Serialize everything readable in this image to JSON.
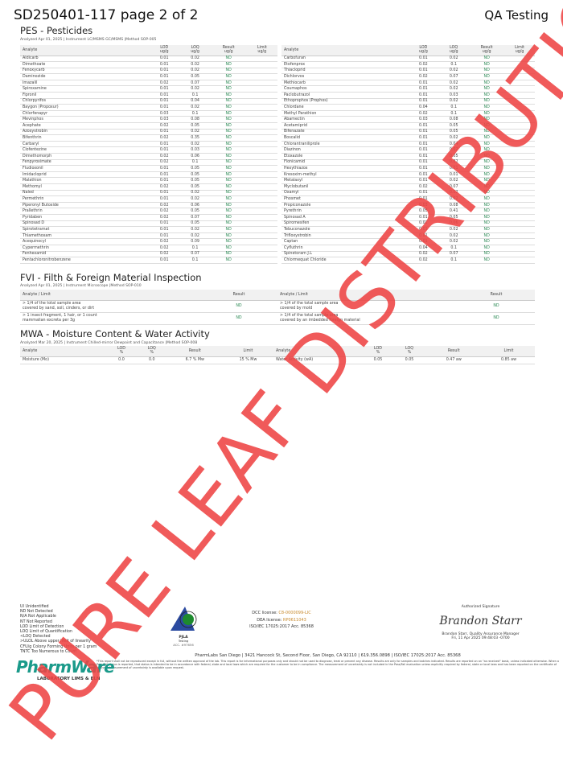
{
  "header": {
    "title": "SD250401-117 page 2 of 2",
    "brand": "QA Testing"
  },
  "pes": {
    "heading": "PES - Pesticides",
    "meta": "Analyzed Apr 01, 2025  |  Instrument LC/MSMS GC/MSMS  |Method SOP-005",
    "columns": [
      "Analyte",
      "LOD\nug/g",
      "LOQ\nug/g",
      "Result\nug/g",
      "Limit\nug/g"
    ],
    "left": [
      [
        "Aldicarb",
        "0.01",
        "0.02",
        "ND",
        ""
      ],
      [
        "Dimethoate",
        "0.01",
        "0.02",
        "ND",
        ""
      ],
      [
        "Fenoxycarb",
        "0.01",
        "0.02",
        "ND",
        ""
      ],
      [
        "Daminozide",
        "0.01",
        "0.05",
        "ND",
        ""
      ],
      [
        "Imazalil",
        "0.02",
        "0.07",
        "ND",
        ""
      ],
      [
        "Spiroxamine",
        "0.01",
        "0.02",
        "ND",
        ""
      ],
      [
        "Fipronil",
        "0.01",
        "0.1",
        "ND",
        ""
      ],
      [
        "Chlorpyrifos",
        "0.01",
        "0.04",
        "ND",
        ""
      ],
      [
        "Baygon (Propoxur)",
        "0.01",
        "0.02",
        "ND",
        ""
      ],
      [
        "Chlorfenapyr",
        "0.03",
        "0.1",
        "ND",
        ""
      ],
      [
        "Mevinphos",
        "0.03",
        "0.08",
        "ND",
        ""
      ],
      [
        "Acephate",
        "0.02",
        "0.05",
        "ND",
        ""
      ],
      [
        "Azoxystrobin",
        "0.01",
        "0.02",
        "ND",
        ""
      ],
      [
        "Bifenthrin",
        "0.02",
        "0.35",
        "ND",
        ""
      ],
      [
        "Carbaryl",
        "0.01",
        "0.02",
        "ND",
        ""
      ],
      [
        "Clofentezine",
        "0.01",
        "0.03",
        "ND",
        ""
      ],
      [
        "Dimethomorph",
        "0.02",
        "0.06",
        "ND",
        ""
      ],
      [
        "Fenpyroximate",
        "0.02",
        "0.1",
        "ND",
        ""
      ],
      [
        "Fludioxonil",
        "0.01",
        "0.05",
        "ND",
        ""
      ],
      [
        "Imidacloprid",
        "0.01",
        "0.05",
        "ND",
        ""
      ],
      [
        "Malathion",
        "0.01",
        "0.05",
        "ND",
        ""
      ],
      [
        "Methomyl",
        "0.02",
        "0.05",
        "ND",
        ""
      ],
      [
        "Naled",
        "0.01",
        "0.02",
        "ND",
        ""
      ],
      [
        "Permethrin",
        "0.01",
        "0.02",
        "ND",
        ""
      ],
      [
        "Piperonyl Butoxide",
        "0.02",
        "0.06",
        "ND",
        ""
      ],
      [
        "Prallethrin",
        "0.02",
        "0.05",
        "ND",
        ""
      ],
      [
        "Pyridaben",
        "0.02",
        "0.07",
        "ND",
        ""
      ],
      [
        "Spinosad D",
        "0.01",
        "0.05",
        "ND",
        ""
      ],
      [
        "Spirotetramat",
        "0.01",
        "0.02",
        "ND",
        ""
      ],
      [
        "Thiamethoxam",
        "0.01",
        "0.02",
        "ND",
        ""
      ],
      [
        "Acequinocyl",
        "0.02",
        "0.09",
        "ND",
        ""
      ],
      [
        "Cypermethrin",
        "0.02",
        "0.1",
        "ND",
        ""
      ],
      [
        "Fenhexamid",
        "0.02",
        "0.07",
        "ND",
        ""
      ],
      [
        "Pentachloronitrobenzene",
        "0.01",
        "0.1",
        "ND",
        ""
      ]
    ],
    "right": [
      [
        "Carbofuran",
        "0.01",
        "0.02",
        "ND",
        ""
      ],
      [
        "Etofenprox",
        "0.02",
        "0.1",
        "ND",
        ""
      ],
      [
        "Thiacloprid",
        "0.01",
        "0.02",
        "ND",
        ""
      ],
      [
        "Dichlorvos",
        "0.02",
        "0.07",
        "ND",
        ""
      ],
      [
        "Methiocarb",
        "0.01",
        "0.02",
        "ND",
        ""
      ],
      [
        "Coumaphos",
        "0.01",
        "0.02",
        "ND",
        ""
      ],
      [
        "Paclobutrazol",
        "0.01",
        "0.03",
        "ND",
        ""
      ],
      [
        "Ethoprophos (Prophos)",
        "0.01",
        "0.02",
        "ND",
        ""
      ],
      [
        "Chlordane",
        "0.04",
        "0.1",
        "ND",
        ""
      ],
      [
        "Methyl Parathion",
        "0.02",
        "0.1",
        "ND",
        ""
      ],
      [
        "Abamectin",
        "0.03",
        "0.08",
        "ND",
        ""
      ],
      [
        "Acetamiprid",
        "0.01",
        "0.05",
        "ND",
        ""
      ],
      [
        "Bifenazate",
        "0.01",
        "0.05",
        "ND",
        ""
      ],
      [
        "Boscalid",
        "0.01",
        "0.02",
        "ND",
        ""
      ],
      [
        "Chlorantraniliprole",
        "0.01",
        "0.04",
        "ND",
        ""
      ],
      [
        "Diazinon",
        "0.01",
        "0.02",
        "ND",
        ""
      ],
      [
        "Etoxazole",
        "0.01",
        "0.05",
        "ND",
        ""
      ],
      [
        "Flonicamid",
        "0.01",
        "0.02",
        "ND",
        ""
      ],
      [
        "Hexythiazox",
        "0.01",
        "0.01",
        "ND",
        ""
      ],
      [
        "Kresoxim-methyl",
        "0.01",
        "0.01",
        "ND",
        ""
      ],
      [
        "Metalaxyl",
        "0.01",
        "0.02",
        "ND",
        ""
      ],
      [
        "Myclobutanil",
        "0.02",
        "0.07",
        "ND",
        ""
      ],
      [
        "Oxamyl",
        "0.01",
        "0.02",
        "ND",
        ""
      ],
      [
        "Phosmet",
        "0.01",
        "0.02",
        "ND",
        ""
      ],
      [
        "Propiconazole",
        "0.03",
        "0.08",
        "ND",
        ""
      ],
      [
        "Pyrethrin",
        "0.05",
        "0.41",
        "ND",
        ""
      ],
      [
        "Spinosad A",
        "0.01",
        "0.05",
        "ND",
        ""
      ],
      [
        "Spiromesifen",
        "0.02",
        "0.06",
        "ND",
        ""
      ],
      [
        "Tebuconazole",
        "0.01",
        "0.02",
        "ND",
        ""
      ],
      [
        "Trifloxystrobin",
        "0.01",
        "0.02",
        "ND",
        ""
      ],
      [
        "Captan",
        "0.01",
        "0.02",
        "ND",
        ""
      ],
      [
        "Cyfluthrin",
        "0.04",
        "0.1",
        "ND",
        ""
      ],
      [
        "Spinetoram J.L",
        "0.02",
        "0.07",
        "ND",
        ""
      ],
      [
        "Chlormequat Chloride",
        "0.02",
        "0.1",
        "ND",
        ""
      ]
    ]
  },
  "fvi": {
    "heading": "FVI - Filth & Foreign Material Inspection",
    "meta": "Analyzed Apr 01, 2025  |  Instrument Microscope  |Method SOP-010",
    "columns": [
      "Analyte / Limit",
      "Result"
    ],
    "left": [
      [
        "> 1/4 of the total sample area\ncovered by sand, soil, cinders, or dirt",
        "ND"
      ],
      [
        "> 1 insect fragment, 1 hair, or 1 count\nmammalian excreta per 3g",
        "ND"
      ]
    ],
    "right": [
      [
        "> 1/4 of the total sample area\ncovered by mold",
        "ND"
      ],
      [
        "> 1/4 of the total sample area\ncovered by an imbedded foreign material",
        "ND"
      ]
    ]
  },
  "mwa": {
    "heading": "MWA - Moisture Content & Water Activity",
    "meta": "Analyzed Mar 20, 2025  |  Instrument Chilled-mirror Dewpoint and Capacitance  |Method SOP-008",
    "columns_left": [
      "Analyte",
      "LOD\n%",
      "LOQ\n%",
      "Result",
      "Limit"
    ],
    "columns_right": [
      "Analyte",
      "LOD\n%",
      "LOQ\n%",
      "Result",
      "Limit"
    ],
    "left": [
      [
        "Moisture (Mo)",
        "0.0",
        "0.0",
        "6.7 % Mw",
        "15 % Mw"
      ]
    ],
    "right": [
      [
        "Water Activity (wA)",
        "0.05",
        "0.05",
        "0.47 aw",
        "0.85 aw"
      ]
    ]
  },
  "footer": {
    "abbreviations": [
      "UI Unidentified",
      "ND Not Detected",
      "N/A Not Applicable",
      "NT Not Reported",
      "LOD Limit of Detection",
      "LOQ Limit of Quantification",
      "<LOQ Detected",
      ">ULOL Above upper limit of linearity",
      "CFU/g Colony Forming Units per 1 gram",
      "TNTC Too Numerous to Count"
    ],
    "pjla": {
      "name": "PJLA",
      "sub": "Testing",
      "acc": "ACC. #97656"
    },
    "dcc_label": "DCC license:",
    "dcc_value": "C8-0000099-LIC",
    "dea_label": "DEA license:",
    "dea_value": "RP0611043",
    "iso": "ISO/IEC 17025:2017 Acc. 85368",
    "sig_label": "Authorized Signature",
    "signature": "Brandon Starr",
    "signer": "Brandon Starr, Quality Assurance Manager",
    "sign_date": "Fri, 11 Apr 2025 09:48:03 -0700",
    "address": "PharmLabs San Diego | 3421 Hancock St, Second Floor, San Diego, CA 92110 | 619.356.0898 | ISO/IEC 17025:2017 Acc. 85368",
    "disclaimer": "*This report shall not be reproduced except in full, without the written approval of the lab. This report is for informational purposes only and should not be used to diagnose, treat or prevent any disease. Results are only for samples and batches indicated. Results are reported on an \"as received\" basis, unless indicated otherwise. When a Pass/Fail status is reported, that status is intended to be in accordance with federal, state and local laws which are required for the customer to be in compliance. The measurement of uncertainty is not included in the Pass/Fail evaluation unless explicitly required by federal, state or local laws and has been reported on the certificate of analysis. Measurement of uncertainty is available upon request.",
    "logo_main": "PharmWare",
    "logo_sub": "LABORATORY LIMS & ELN"
  },
  "watermark": "PURE LEAF DISTRIBUTION",
  "colors": {
    "watermark": "#ee4444",
    "nd": "#2e8b57",
    "license": "#c88a2d",
    "logo": "#1a9a8a"
  }
}
